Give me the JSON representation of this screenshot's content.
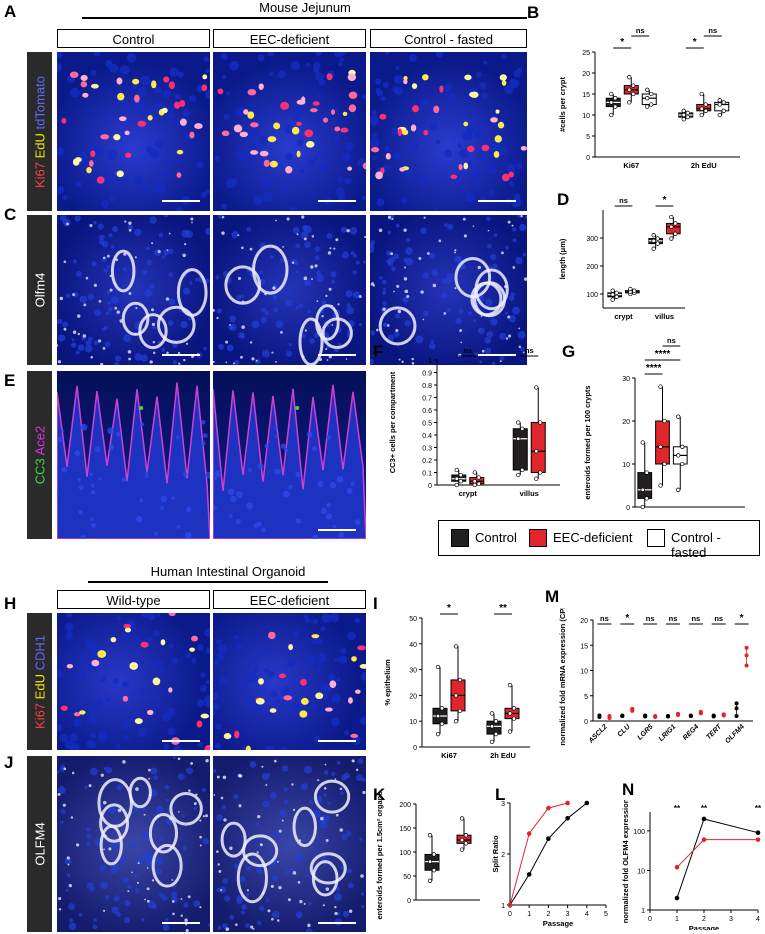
{
  "panels": {
    "A": "A",
    "B": "B",
    "C": "C",
    "D": "D",
    "E": "E",
    "F": "F",
    "G": "G",
    "H": "H",
    "I": "I",
    "J": "J",
    "K": "K",
    "L": "L",
    "M": "M",
    "N": "N"
  },
  "mouse": {
    "header": "Mouse Jejunum",
    "columns": [
      "Control",
      "EEC-deficient",
      "Control - fasted"
    ],
    "rows": {
      "A": {
        "parts": [
          {
            "t": "Ki67",
            "c": "#ff4040"
          },
          {
            "t": " EdU",
            "c": "#f2e600"
          },
          {
            "t": " tdTomato",
            "c": "#5a6bff"
          }
        ]
      },
      "C": {
        "parts": [
          {
            "t": "Olfm4",
            "c": "#ffffff"
          }
        ]
      },
      "E": {
        "parts": [
          {
            "t": "CC3",
            "c": "#33dd33"
          },
          {
            "t": " Ace2",
            "c": "#dd33dd"
          }
        ]
      }
    }
  },
  "human": {
    "header": "Human Intestinal Organoid",
    "columns": [
      "Wild-type",
      "EEC-deficient"
    ],
    "rows": {
      "H": {
        "parts": [
          {
            "t": "Ki67",
            "c": "#ff4040"
          },
          {
            "t": " EdU",
            "c": "#f2e600"
          },
          {
            "t": " CDH1",
            "c": "#5a6bff"
          }
        ]
      },
      "J": {
        "parts": [
          {
            "t": "OLFM4",
            "c": "#ffffff"
          }
        ]
      }
    }
  },
  "legend": {
    "items": [
      {
        "label": "Control",
        "color": "#231f20"
      },
      {
        "label": "EEC-deficient",
        "color": "#e0262b"
      },
      {
        "label": "Control - fasted",
        "color": "#ffffff"
      }
    ]
  },
  "colors": {
    "control": "#231f20",
    "eec": "#e0262b",
    "fasted": "#ffffff",
    "micro_bg": "#0b1a8a"
  },
  "chart_data": [
    {
      "id": "B",
      "type": "box",
      "ylabel": "#cells per crypt",
      "ylim": [
        0,
        25
      ],
      "yticks": [
        0,
        5,
        10,
        15,
        20,
        25
      ],
      "categories": [
        "Ki67",
        "2h EdU"
      ],
      "groups": [
        {
          "cat": 0,
          "series": "control",
          "q": [
            10,
            12,
            13,
            14,
            15
          ]
        },
        {
          "cat": 0,
          "series": "eec",
          "q": [
            13,
            15,
            16,
            17,
            19
          ]
        },
        {
          "cat": 0,
          "series": "fasted",
          "q": [
            12,
            12.5,
            14,
            15,
            16
          ]
        },
        {
          "cat": 1,
          "series": "control",
          "q": [
            9,
            9.5,
            10,
            10.5,
            11
          ]
        },
        {
          "cat": 1,
          "series": "eec",
          "q": [
            10,
            11,
            11.5,
            12.5,
            15
          ]
        },
        {
          "cat": 1,
          "series": "fasted",
          "q": [
            10,
            11,
            12.5,
            13,
            13.5
          ]
        }
      ],
      "sig": [
        {
          "cat": 0,
          "pair": [
            0,
            1
          ],
          "label": "*"
        },
        {
          "cat": 0,
          "pair": [
            1,
            2
          ],
          "label": "ns"
        },
        {
          "cat": 1,
          "pair": [
            0,
            1
          ],
          "label": "*"
        },
        {
          "cat": 1,
          "pair": [
            1,
            2
          ],
          "label": "ns"
        }
      ]
    },
    {
      "id": "D",
      "type": "box",
      "ylabel": "length (μm)",
      "ylim": [
        50,
        400
      ],
      "yticks": [
        100,
        200,
        300
      ],
      "categories": [
        "crypt",
        "villus"
      ],
      "groups": [
        {
          "cat": 0,
          "series": "control",
          "q": [
            80,
            90,
            98,
            104,
            112
          ]
        },
        {
          "cat": 0,
          "series": "fasted",
          "q": [
            100,
            104,
            108,
            112,
            118
          ]
        },
        {
          "cat": 1,
          "series": "control",
          "q": [
            262,
            280,
            290,
            298,
            310
          ]
        },
        {
          "cat": 1,
          "series": "eec",
          "q": [
            298,
            315,
            340,
            352,
            375
          ]
        }
      ],
      "sig": [
        {
          "cat": 0,
          "pair": [
            0,
            1
          ],
          "label": "ns"
        },
        {
          "cat": 1,
          "pair": [
            0,
            1
          ],
          "label": "*"
        }
      ]
    },
    {
      "id": "F",
      "type": "box",
      "ylabel": "CC3+ cells per compartment",
      "ylim": [
        0,
        1.0
      ],
      "yticks": [
        0.0,
        0.1,
        0.2,
        0.3,
        0.4,
        0.5,
        0.6,
        0.7,
        0.8,
        0.9,
        1.0
      ],
      "categories": [
        "crypt",
        "villus"
      ],
      "groups": [
        {
          "cat": 0,
          "series": "control",
          "q": [
            0,
            0.03,
            0.05,
            0.08,
            0.12
          ]
        },
        {
          "cat": 0,
          "series": "eec",
          "q": [
            0,
            0.01,
            0.03,
            0.06,
            0.1
          ]
        },
        {
          "cat": 1,
          "series": "control",
          "q": [
            0.08,
            0.12,
            0.37,
            0.45,
            0.5
          ]
        },
        {
          "cat": 1,
          "series": "eec",
          "q": [
            0.05,
            0.1,
            0.27,
            0.5,
            0.78
          ]
        }
      ],
      "sig": [
        {
          "cat": 0,
          "pair": [
            0,
            1
          ],
          "label": "ns"
        },
        {
          "cat": 1,
          "pair": [
            0,
            1
          ],
          "label": "ns"
        }
      ]
    },
    {
      "id": "G",
      "type": "box",
      "ylabel": "enteroids formed per 100 crypts",
      "ylim": [
        0,
        30
      ],
      "yticks": [
        0,
        10,
        20,
        30
      ],
      "categories": [
        "",
        ""
      ],
      "groups": [
        {
          "cat": 0,
          "series": "control",
          "q": [
            0,
            2,
            4,
            8,
            15
          ]
        },
        {
          "cat": 0,
          "series": "eec",
          "q": [
            5,
            10,
            14,
            20,
            28
          ]
        },
        {
          "cat": 0,
          "series": "fasted",
          "q": [
            4,
            10,
            12,
            14,
            21
          ]
        }
      ],
      "sig": [
        {
          "cat": 0,
          "pair": [
            0,
            1
          ],
          "label": "****"
        },
        {
          "cat": 0,
          "pair": [
            0,
            2
          ],
          "label": "****"
        },
        {
          "cat": 0,
          "pair": [
            1,
            2
          ],
          "label": "ns"
        }
      ]
    },
    {
      "id": "I",
      "type": "box",
      "ylabel": "% epithelium",
      "ylim": [
        0,
        50
      ],
      "yticks": [
        0,
        10,
        20,
        30,
        40,
        50
      ],
      "categories": [
        "Ki67",
        "2h EdU"
      ],
      "groups": [
        {
          "cat": 0,
          "series": "control",
          "q": [
            5,
            9,
            12,
            15,
            31
          ]
        },
        {
          "cat": 0,
          "series": "eec",
          "q": [
            10,
            14,
            20,
            26,
            39
          ]
        },
        {
          "cat": 1,
          "series": "control",
          "q": [
            2,
            5,
            8,
            10,
            13
          ]
        },
        {
          "cat": 1,
          "series": "eec",
          "q": [
            6,
            11,
            13,
            15,
            24
          ]
        }
      ],
      "sig": [
        {
          "cat": 0,
          "pair": [
            0,
            1
          ],
          "label": "*"
        },
        {
          "cat": 1,
          "pair": [
            0,
            1
          ],
          "label": "**"
        }
      ]
    },
    {
      "id": "K",
      "type": "box",
      "ylabel": "enteroids formed per 1.5cm² organoid",
      "ylim": [
        0,
        200
      ],
      "yticks": [
        0,
        50,
        100,
        150,
        200
      ],
      "categories": [
        "",
        ""
      ],
      "groups": [
        {
          "cat": 0,
          "series": "control",
          "q": [
            40,
            62,
            80,
            95,
            135
          ]
        },
        {
          "cat": 1,
          "series": "eec",
          "q": [
            105,
            118,
            125,
            135,
            170
          ]
        }
      ],
      "sig": [
        {
          "cat": 0,
          "pair": [
            0,
            1
          ],
          "label": "****"
        }
      ]
    },
    {
      "id": "L",
      "type": "line",
      "xlabel": "Passage",
      "ylabel": "Split Ratio",
      "xlim": [
        0,
        5
      ],
      "ylim": [
        1,
        3
      ],
      "xticks": [
        0,
        1,
        2,
        3,
        4,
        5
      ],
      "yticks": [
        1,
        2,
        3
      ],
      "series": [
        {
          "series": "control",
          "x": [
            0,
            1,
            2,
            3,
            4
          ],
          "y": [
            1,
            1.6,
            2.3,
            2.7,
            3.0
          ]
        },
        {
          "series": "eec",
          "x": [
            0,
            1,
            2,
            3
          ],
          "y": [
            1,
            2.4,
            2.9,
            3.0
          ]
        }
      ]
    },
    {
      "id": "M",
      "type": "dot",
      "ylabel": "normalized fold mRNA expression (CPHA)",
      "ylim": [
        0,
        20
      ],
      "yticks": [
        0,
        5,
        10,
        15,
        20
      ],
      "categories": [
        "ASCL2",
        "CLU",
        "LGR5",
        "LRIG1",
        "REG4",
        "TERT",
        "OLFM4"
      ],
      "values": {
        "control": [
          [
            0.8,
            1,
            1.1
          ],
          [
            1,
            1.1,
            1
          ],
          [
            0.9,
            1,
            1.1
          ],
          [
            1,
            1,
            0.9
          ],
          [
            1,
            1.1,
            1
          ],
          [
            1,
            0.9,
            1.1
          ],
          [
            1,
            2.5,
            3.5
          ]
        ],
        "eec": [
          [
            0.6,
            0.9,
            1
          ],
          [
            2,
            2.3,
            2.4
          ],
          [
            0.8,
            0.9,
            1
          ],
          [
            1.2,
            1.4,
            1.3
          ],
          [
            1.5,
            1.8,
            1.6
          ],
          [
            1.1,
            1.3,
            1.2
          ],
          [
            11,
            13,
            14.5
          ]
        ]
      },
      "sig": [
        "ns",
        "*",
        "ns",
        "ns",
        "ns",
        "ns",
        "*"
      ]
    },
    {
      "id": "N",
      "type": "line",
      "xlabel": "Passage",
      "ylabel": "normalized fold OLFM4 expression",
      "yscale": "log",
      "ylim": [
        1,
        300
      ],
      "xticks": [
        0,
        1,
        2,
        3,
        4
      ],
      "yticks": [
        1,
        10,
        100
      ],
      "series": [
        {
          "series": "control",
          "x": [
            1,
            2,
            4
          ],
          "y": [
            2,
            200,
            90
          ]
        },
        {
          "series": "eec",
          "x": [
            1,
            2,
            4
          ],
          "y": [
            12,
            60,
            60
          ]
        }
      ],
      "sig": [
        {
          "x": 1,
          "label": "**"
        },
        {
          "x": 2,
          "label": "**"
        },
        {
          "x": 4,
          "label": "**"
        }
      ]
    }
  ]
}
